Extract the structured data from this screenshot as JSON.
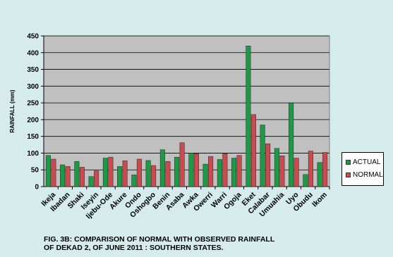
{
  "chart_data": {
    "type": "bar",
    "ylabel": "RAINFALL (mm)",
    "xlabel": "",
    "ylim": [
      0,
      450
    ],
    "yticks": [
      0,
      50,
      100,
      150,
      200,
      250,
      300,
      350,
      400,
      450
    ],
    "grid": true,
    "legend_position": "right",
    "categories": [
      "Ikeja",
      "Ibadan",
      "Shaki",
      "Iseyin",
      "Ijebu-Ode",
      "Akure",
      "Ondo",
      "Oshogbo",
      "Benin",
      "Asaba",
      "Awka",
      "Owerri",
      "Warri",
      "Ogoja",
      "Eket",
      "Calabar",
      "Umuahia",
      "Uyo",
      "Obudu",
      "Ikom"
    ],
    "series": [
      {
        "name": "ACTUAL",
        "color": "#1e9a46",
        "values": [
          93,
          65,
          75,
          30,
          85,
          60,
          35,
          78,
          110,
          88,
          100,
          67,
          81,
          85,
          420,
          184,
          114,
          250,
          36,
          72
        ]
      },
      {
        "name": "NORMAL",
        "color": "#c84b4e",
        "values": [
          82,
          60,
          58,
          47,
          88,
          77,
          82,
          63,
          75,
          131,
          98,
          90,
          98,
          93,
          215,
          128,
          92,
          85,
          106,
          102
        ]
      }
    ]
  },
  "caption": {
    "line1": "FIG. 3B: COMPARISON OF NORMAL  WITH OBSERVED RAINFALL",
    "line2": "OF  DEKAD 2, OF JUNE 2011 : SOUTHERN STATES."
  }
}
